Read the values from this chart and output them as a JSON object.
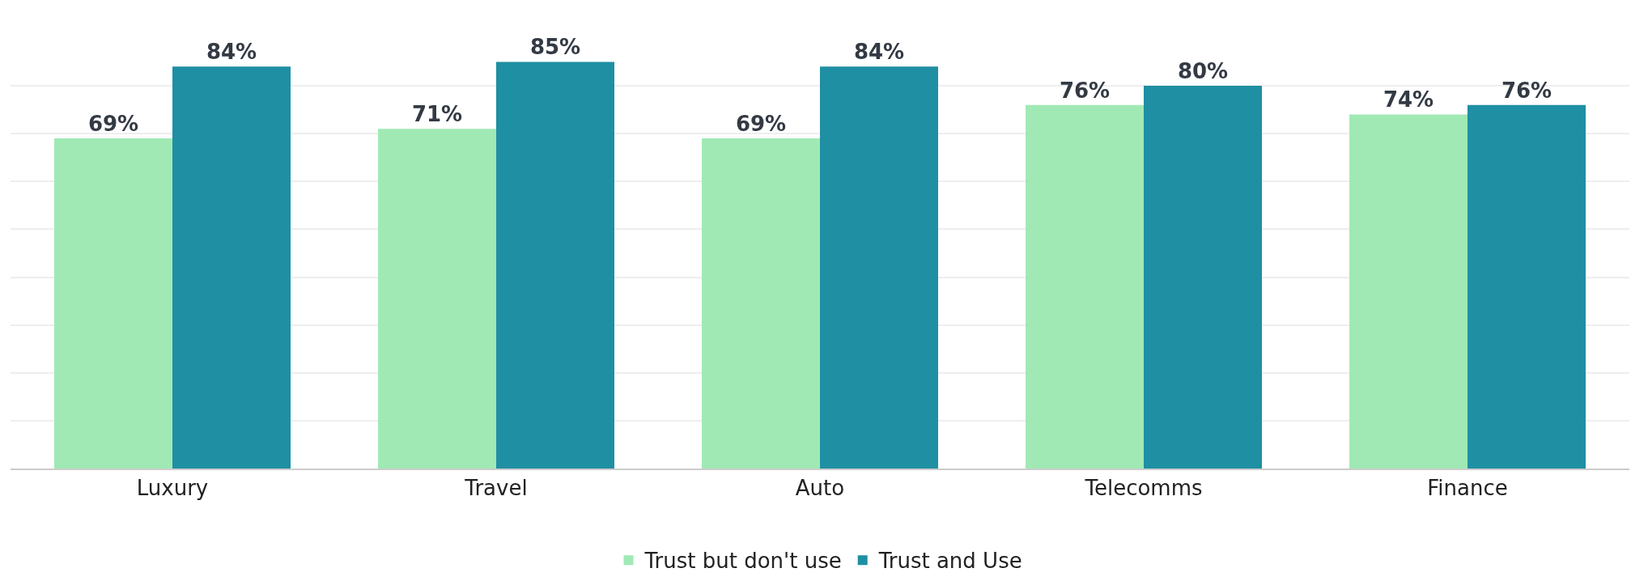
{
  "chart_data": {
    "type": "bar",
    "categories": [
      "Luxury",
      "Travel",
      "Auto",
      "Telecomms",
      "Finance"
    ],
    "series": [
      {
        "name": "Trust but don't use",
        "color": "#a0e9b5",
        "values": [
          69,
          71,
          69,
          76,
          74
        ],
        "value_labels": [
          "69%",
          "71%",
          "69%",
          "76%",
          "74%"
        ]
      },
      {
        "name": "Trust and Use",
        "color": "#1f8fa3",
        "values": [
          84,
          85,
          84,
          80,
          76
        ],
        "value_labels": [
          "84%",
          "85%",
          "84%",
          "80%",
          "76%"
        ]
      }
    ],
    "tick_labels": "x",
    "grid": "y",
    "legend": "bottom"
  }
}
